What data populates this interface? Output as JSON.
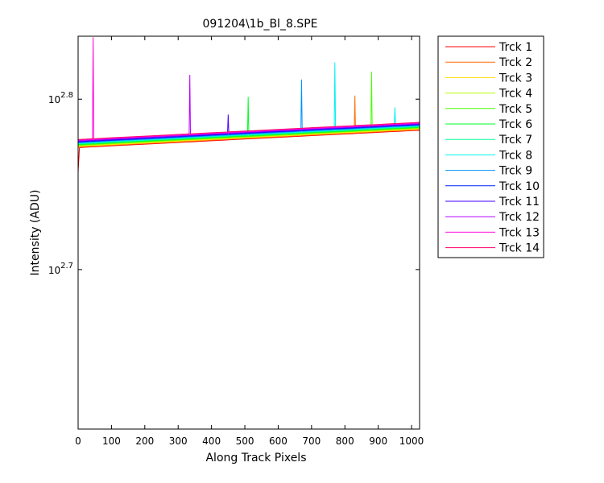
{
  "chart_data": {
    "type": "line",
    "title": "091204\\1b_Bl_8.SPE",
    "xlabel": "Along Track Pixels",
    "ylabel": "Intensity (ADU)",
    "yscale": "log",
    "xlim": [
      0,
      1024
    ],
    "ylim": [
      404,
      687
    ],
    "xticks": [
      0,
      100,
      200,
      300,
      400,
      500,
      600,
      700,
      800,
      900,
      1000
    ],
    "yticks": [
      {
        "value": 501.187,
        "label": "10^2.7"
      },
      {
        "value": 630.957,
        "label": "10^2.8"
      }
    ],
    "legend": "outside-right",
    "x": [
      0,
      4,
      43,
      45,
      47,
      100,
      200,
      300,
      333,
      335,
      337,
      400,
      448,
      450,
      452,
      508,
      510,
      512,
      600,
      668,
      670,
      672,
      700,
      768,
      770,
      772,
      800,
      828,
      830,
      832,
      878,
      880,
      882,
      900,
      948,
      950,
      952,
      1000,
      1024
    ],
    "series": [
      {
        "name": "Trck 1",
        "color": "#ff0000",
        "values": [
          572,
          591,
          591.6,
          591.6,
          591.6,
          592.4,
          593.7,
          595.1,
          595.6,
          595.6,
          595.6,
          596.5,
          597.1,
          597.2,
          597.2,
          598,
          598,
          598,
          599.2,
          600.1,
          600.2,
          600.2,
          600.6,
          601.5,
          601.5,
          601.6,
          601.9,
          602.3,
          602.4,
          602.4,
          603,
          603,
          603,
          603.3,
          604,
          604,
          604,
          604.7,
          605
        ]
      },
      {
        "name": "Trck 2",
        "color": "#ff6d00",
        "values": [
          591.5,
          591.5,
          592.1,
          592.1,
          592.1,
          592.9,
          594.2,
          595.6,
          596.1,
          596.1,
          596.1,
          597,
          597.6,
          597.7,
          597.7,
          598.5,
          598.5,
          598.5,
          599.7,
          600.6,
          600.7,
          600.7,
          601.1,
          602,
          602,
          602.1,
          602.4,
          602.8,
          634,
          602.9,
          603.5,
          603.5,
          603.5,
          603.8,
          604.5,
          604.5,
          604.5,
          605.2,
          605.5
        ]
      },
      {
        "name": "Trck 3",
        "color": "#ffdb00",
        "values": [
          592,
          592,
          592.6,
          592.6,
          592.6,
          593.4,
          594.7,
          596.1,
          596.6,
          596.6,
          596.6,
          597.5,
          598.1,
          598.2,
          598.2,
          599,
          599,
          599,
          600.2,
          601.1,
          601.2,
          601.2,
          601.6,
          602.5,
          602.5,
          602.6,
          602.9,
          603.3,
          603.4,
          603.4,
          604,
          604,
          604,
          604.3,
          605,
          605,
          605,
          605.7,
          606
        ]
      },
      {
        "name": "Trck 4",
        "color": "#b6ff00",
        "values": [
          592.5,
          592.5,
          593.1,
          593.1,
          593.1,
          593.9,
          595.2,
          596.6,
          597.1,
          597.1,
          597.1,
          598,
          598.6,
          598.7,
          598.7,
          599.5,
          599.5,
          599.5,
          600.7,
          601.6,
          601.7,
          601.7,
          602.1,
          603,
          603,
          603.1,
          603.4,
          603.8,
          603.9,
          603.9,
          604.5,
          604.5,
          604.5,
          604.8,
          605.5,
          605.5,
          605.5,
          606.2,
          606.5
        ]
      },
      {
        "name": "Trck 5",
        "color": "#49ff00",
        "values": [
          593,
          593,
          593.6,
          593.6,
          593.6,
          594.4,
          595.7,
          597.1,
          597.6,
          597.6,
          597.6,
          598.5,
          599.1,
          599.2,
          599.2,
          600,
          600,
          600,
          601.2,
          602.1,
          602.2,
          602.2,
          602.6,
          603.5,
          603.5,
          603.6,
          603.9,
          604.3,
          604.4,
          604.4,
          605,
          655,
          605,
          605.3,
          606,
          606,
          606,
          606.7,
          607
        ]
      },
      {
        "name": "Trck 6",
        "color": "#00ff24",
        "values": [
          593.5,
          593.5,
          594.1,
          594.1,
          594.1,
          594.9,
          596.2,
          597.6,
          598.1,
          598.1,
          598.1,
          599,
          599.6,
          599.7,
          599.7,
          600.5,
          633,
          600.5,
          601.7,
          602.6,
          602.7,
          602.7,
          603.1,
          604,
          604,
          604.1,
          604.4,
          604.8,
          604.9,
          604.9,
          605.5,
          605.5,
          605.5,
          605.8,
          606.5,
          606.5,
          606.5,
          607.2,
          607.5
        ]
      },
      {
        "name": "Trck 7",
        "color": "#00ff92",
        "values": [
          594,
          594,
          594.6,
          594.6,
          594.6,
          595.4,
          596.7,
          598.1,
          598.6,
          598.6,
          598.6,
          599.5,
          600.1,
          600.2,
          600.2,
          601,
          601,
          601,
          602.2,
          603.1,
          603.2,
          603.2,
          603.6,
          604.5,
          604.5,
          604.6,
          604.9,
          605.3,
          605.4,
          605.4,
          606,
          606,
          606,
          606.3,
          607,
          607,
          607,
          607.7,
          608
        ]
      },
      {
        "name": "Trck 8",
        "color": "#00f0f0",
        "values": [
          594.5,
          594.5,
          595.1,
          595.1,
          595.1,
          595.9,
          597.2,
          598.6,
          599.1,
          599.1,
          599.1,
          600,
          600.6,
          600.7,
          600.7,
          601.5,
          601.5,
          601.5,
          602.7,
          603.6,
          603.7,
          603.7,
          604.1,
          605,
          663,
          605.1,
          605.4,
          605.8,
          605.9,
          605.9,
          606.5,
          606.5,
          606.5,
          606.8,
          607.5,
          624,
          607.5,
          608.2,
          608.5
        ]
      },
      {
        "name": "Trck 9",
        "color": "#0092ff",
        "values": [
          595,
          595,
          595.6,
          595.6,
          595.6,
          596.4,
          597.7,
          599.1,
          599.6,
          599.6,
          599.6,
          600.5,
          601.1,
          601.2,
          601.2,
          602,
          602,
          602,
          603.2,
          604.1,
          648,
          604.2,
          604.6,
          605.5,
          605.5,
          605.6,
          605.9,
          606.3,
          606.4,
          606.4,
          607,
          607,
          607,
          607.3,
          608,
          608,
          608,
          608.7,
          609
        ]
      },
      {
        "name": "Trck 10",
        "color": "#0024ff",
        "values": [
          595.5,
          595.5,
          596.1,
          596.1,
          596.1,
          596.9,
          598.2,
          599.6,
          600.1,
          600.1,
          600.1,
          601,
          601.6,
          601.7,
          601.7,
          602.5,
          602.5,
          602.5,
          603.7,
          604.6,
          604.7,
          604.7,
          605.1,
          606,
          606,
          606.1,
          606.4,
          606.8,
          606.9,
          606.9,
          607.5,
          607.5,
          607.5,
          607.8,
          608.5,
          608.5,
          608.5,
          609.2,
          609.5
        ]
      },
      {
        "name": "Trck 11",
        "color": "#4900ff",
        "values": [
          596,
          596,
          596.6,
          596.6,
          596.6,
          597.4,
          598.7,
          600.1,
          600.6,
          600.6,
          600.6,
          601.5,
          602.1,
          618,
          602.2,
          603,
          603,
          603,
          604.2,
          605.1,
          605.2,
          605.2,
          605.6,
          606.5,
          606.5,
          606.6,
          606.9,
          607.3,
          607.4,
          607.4,
          608,
          608,
          608,
          608.3,
          609,
          609,
          609,
          609.7,
          610
        ]
      },
      {
        "name": "Trck 12",
        "color": "#b600ff",
        "values": [
          596.5,
          596.5,
          597.1,
          597.1,
          597.1,
          597.9,
          599.2,
          600.6,
          601.1,
          652,
          601.1,
          602,
          602.6,
          602.7,
          602.7,
          603.5,
          603.5,
          603.5,
          604.7,
          605.6,
          605.7,
          605.7,
          606.1,
          607,
          607,
          607.1,
          607.4,
          607.8,
          607.9,
          607.9,
          608.5,
          608.5,
          608.5,
          608.8,
          609.5,
          609.5,
          609.5,
          610.2,
          610.5
        ]
      },
      {
        "name": "Trck 13",
        "color": "#ff00db",
        "values": [
          597,
          597,
          597.6,
          686,
          597.6,
          598.4,
          599.7,
          601.1,
          601.6,
          601.6,
          601.6,
          602.5,
          603.1,
          603.2,
          603.2,
          604,
          604,
          604,
          605.2,
          606.1,
          606.2,
          606.2,
          606.6,
          607.5,
          607.5,
          607.6,
          607.9,
          608.3,
          608.4,
          608.4,
          609,
          609,
          609,
          609.3,
          610,
          610,
          610,
          610.7,
          611
        ]
      },
      {
        "name": "Trck 14",
        "color": "#ff006d",
        "values": [
          597.5,
          597.5,
          598.1,
          598.1,
          598.1,
          598.9,
          600.2,
          601.6,
          602.1,
          602.1,
          602.1,
          603,
          603.6,
          603.7,
          603.7,
          604.5,
          604.5,
          604.5,
          605.7,
          606.6,
          606.7,
          606.7,
          607.1,
          608,
          608,
          608.1,
          608.4,
          608.8,
          608.9,
          608.9,
          609.5,
          609.5,
          609.5,
          609.8,
          610.5,
          610.5,
          610.5,
          611.2,
          611.5
        ]
      }
    ]
  }
}
